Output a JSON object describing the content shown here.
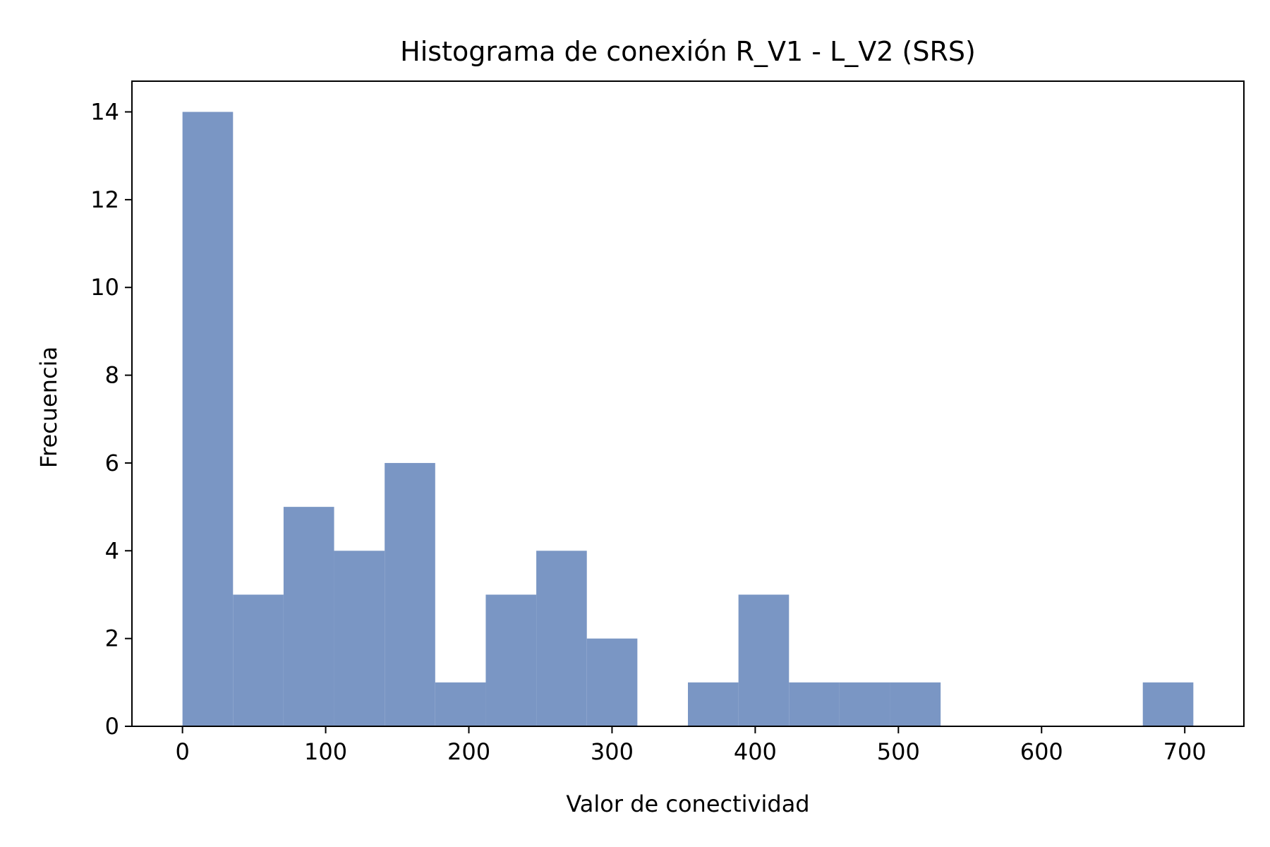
{
  "chart_data": {
    "type": "bar",
    "title": "Histograma de conexión R_V1 - L_V2 (SRS)",
    "xlabel": "Valor de conectividad",
    "ylabel": "Frecuencia",
    "bin_edges": [
      0,
      35.3,
      70.6,
      105.9,
      141.2,
      176.5,
      211.8,
      247.1,
      282.4,
      317.7,
      353.0,
      388.3,
      423.6,
      458.9,
      494.2,
      529.5,
      564.8,
      600.1,
      635.4,
      670.7,
      706.0
    ],
    "counts": [
      14,
      3,
      5,
      4,
      6,
      1,
      3,
      4,
      2,
      0,
      1,
      3,
      1,
      1,
      1,
      0,
      0,
      0,
      0,
      1
    ],
    "xlim": [
      -35.3,
      741.3
    ],
    "ylim": [
      0,
      14.7
    ],
    "xticks": [
      0,
      100,
      200,
      300,
      400,
      500,
      600,
      700
    ],
    "yticks": [
      0,
      2,
      4,
      6,
      8,
      10,
      12,
      14
    ],
    "grid": false,
    "bar_color": "#7a96c4"
  }
}
